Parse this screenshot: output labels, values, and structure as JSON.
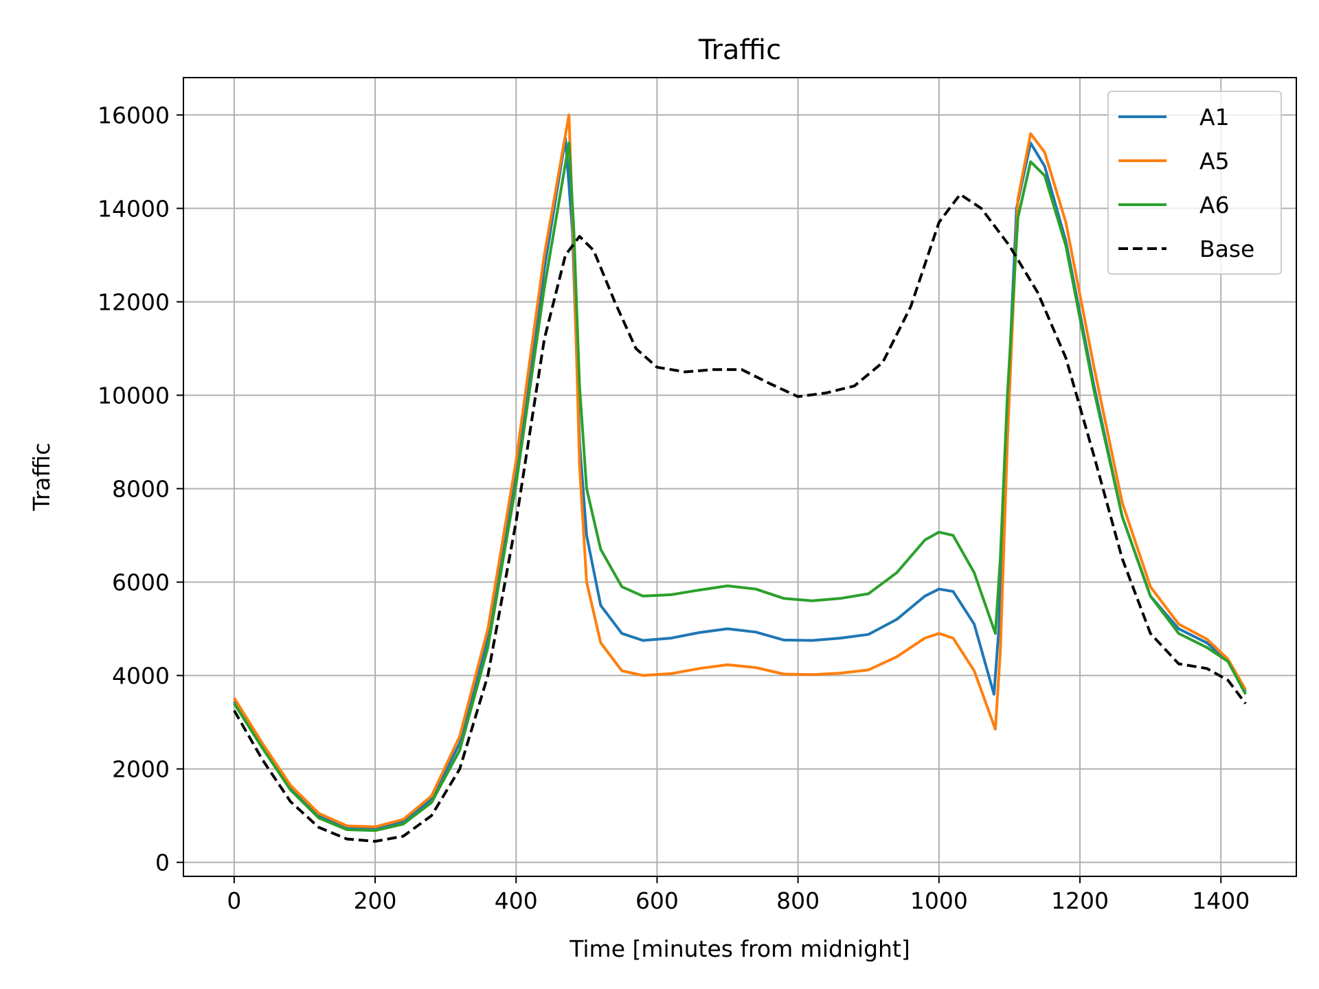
{
  "chart_data": {
    "type": "line",
    "title": "Traffic",
    "xlabel": "Time [minutes from midnight]",
    "ylabel": "Traffic",
    "xlim": [
      -72,
      1507
    ],
    "ylim": [
      -300,
      16800
    ],
    "xticks": [
      0,
      200,
      400,
      600,
      800,
      1000,
      1200,
      1400
    ],
    "yticks": [
      0,
      2000,
      4000,
      6000,
      8000,
      10000,
      12000,
      14000,
      16000
    ],
    "grid": true,
    "legend": "top-right",
    "series": [
      {
        "name": "A1",
        "color": "#1f77b4",
        "dash": "solid",
        "points": [
          [
            0,
            3450
          ],
          [
            40,
            2500
          ],
          [
            80,
            1600
          ],
          [
            120,
            1000
          ],
          [
            160,
            750
          ],
          [
            200,
            720
          ],
          [
            240,
            880
          ],
          [
            280,
            1350
          ],
          [
            320,
            2550
          ],
          [
            360,
            4800
          ],
          [
            400,
            8300
          ],
          [
            440,
            12700
          ],
          [
            470,
            15500
          ],
          [
            480,
            13500
          ],
          [
            490,
            9000
          ],
          [
            500,
            7000
          ],
          [
            520,
            5500
          ],
          [
            550,
            4900
          ],
          [
            580,
            4750
          ],
          [
            620,
            4800
          ],
          [
            660,
            4920
          ],
          [
            700,
            5000
          ],
          [
            740,
            4930
          ],
          [
            780,
            4760
          ],
          [
            820,
            4750
          ],
          [
            860,
            4800
          ],
          [
            900,
            4880
          ],
          [
            940,
            5200
          ],
          [
            980,
            5700
          ],
          [
            1000,
            5850
          ],
          [
            1020,
            5800
          ],
          [
            1050,
            5100
          ],
          [
            1078,
            3600
          ],
          [
            1085,
            5000
          ],
          [
            1095,
            9000
          ],
          [
            1110,
            14000
          ],
          [
            1130,
            15400
          ],
          [
            1150,
            14900
          ],
          [
            1180,
            13300
          ],
          [
            1220,
            10200
          ],
          [
            1260,
            7400
          ],
          [
            1300,
            5700
          ],
          [
            1340,
            5000
          ],
          [
            1380,
            4700
          ],
          [
            1410,
            4300
          ],
          [
            1435,
            3650
          ]
        ]
      },
      {
        "name": "A5",
        "color": "#ff7f0e",
        "dash": "solid",
        "points": [
          [
            0,
            3520
          ],
          [
            40,
            2550
          ],
          [
            80,
            1650
          ],
          [
            120,
            1050
          ],
          [
            160,
            780
          ],
          [
            200,
            760
          ],
          [
            240,
            920
          ],
          [
            280,
            1420
          ],
          [
            320,
            2700
          ],
          [
            360,
            5000
          ],
          [
            400,
            8600
          ],
          [
            440,
            13000
          ],
          [
            475,
            16000
          ],
          [
            482,
            13000
          ],
          [
            490,
            8500
          ],
          [
            500,
            6000
          ],
          [
            520,
            4700
          ],
          [
            550,
            4100
          ],
          [
            580,
            4000
          ],
          [
            620,
            4040
          ],
          [
            660,
            4150
          ],
          [
            700,
            4230
          ],
          [
            740,
            4170
          ],
          [
            780,
            4030
          ],
          [
            820,
            4020
          ],
          [
            860,
            4050
          ],
          [
            900,
            4120
          ],
          [
            940,
            4400
          ],
          [
            980,
            4800
          ],
          [
            1000,
            4900
          ],
          [
            1020,
            4800
          ],
          [
            1050,
            4100
          ],
          [
            1080,
            2850
          ],
          [
            1087,
            4500
          ],
          [
            1097,
            9000
          ],
          [
            1112,
            14200
          ],
          [
            1130,
            15600
          ],
          [
            1150,
            15200
          ],
          [
            1180,
            13700
          ],
          [
            1220,
            10600
          ],
          [
            1260,
            7700
          ],
          [
            1300,
            5900
          ],
          [
            1340,
            5100
          ],
          [
            1380,
            4780
          ],
          [
            1410,
            4350
          ],
          [
            1435,
            3700
          ]
        ]
      },
      {
        "name": "A6",
        "color": "#2ca02c",
        "dash": "solid",
        "points": [
          [
            0,
            3400
          ],
          [
            40,
            2450
          ],
          [
            80,
            1550
          ],
          [
            120,
            950
          ],
          [
            160,
            700
          ],
          [
            200,
            680
          ],
          [
            240,
            820
          ],
          [
            280,
            1280
          ],
          [
            320,
            2400
          ],
          [
            360,
            4600
          ],
          [
            400,
            8100
          ],
          [
            440,
            12300
          ],
          [
            475,
            15400
          ],
          [
            482,
            13500
          ],
          [
            490,
            10200
          ],
          [
            500,
            8000
          ],
          [
            520,
            6700
          ],
          [
            550,
            5900
          ],
          [
            580,
            5700
          ],
          [
            620,
            5730
          ],
          [
            660,
            5830
          ],
          [
            700,
            5920
          ],
          [
            740,
            5850
          ],
          [
            780,
            5650
          ],
          [
            820,
            5600
          ],
          [
            860,
            5650
          ],
          [
            900,
            5750
          ],
          [
            940,
            6200
          ],
          [
            980,
            6900
          ],
          [
            1000,
            7070
          ],
          [
            1020,
            7000
          ],
          [
            1050,
            6200
          ],
          [
            1080,
            4900
          ],
          [
            1087,
            6500
          ],
          [
            1097,
            10000
          ],
          [
            1112,
            13800
          ],
          [
            1130,
            15000
          ],
          [
            1150,
            14700
          ],
          [
            1180,
            13200
          ],
          [
            1220,
            10100
          ],
          [
            1260,
            7400
          ],
          [
            1300,
            5700
          ],
          [
            1340,
            4900
          ],
          [
            1380,
            4600
          ],
          [
            1410,
            4300
          ],
          [
            1435,
            3600
          ]
        ]
      },
      {
        "name": "Base",
        "color": "#000000",
        "dash": "dashed",
        "points": [
          [
            0,
            3250
          ],
          [
            40,
            2200
          ],
          [
            80,
            1300
          ],
          [
            120,
            750
          ],
          [
            160,
            500
          ],
          [
            200,
            450
          ],
          [
            240,
            560
          ],
          [
            280,
            1000
          ],
          [
            320,
            2000
          ],
          [
            360,
            4000
          ],
          [
            400,
            7300
          ],
          [
            440,
            11200
          ],
          [
            470,
            13000
          ],
          [
            490,
            13400
          ],
          [
            510,
            13100
          ],
          [
            540,
            12000
          ],
          [
            570,
            11000
          ],
          [
            600,
            10600
          ],
          [
            640,
            10500
          ],
          [
            680,
            10550
          ],
          [
            720,
            10550
          ],
          [
            760,
            10250
          ],
          [
            800,
            9970
          ],
          [
            840,
            10050
          ],
          [
            880,
            10200
          ],
          [
            920,
            10700
          ],
          [
            960,
            11900
          ],
          [
            1000,
            13700
          ],
          [
            1030,
            14300
          ],
          [
            1060,
            14000
          ],
          [
            1100,
            13200
          ],
          [
            1140,
            12200
          ],
          [
            1180,
            10800
          ],
          [
            1220,
            8700
          ],
          [
            1260,
            6500
          ],
          [
            1300,
            4900
          ],
          [
            1340,
            4250
          ],
          [
            1380,
            4150
          ],
          [
            1410,
            3900
          ],
          [
            1435,
            3400
          ]
        ]
      }
    ]
  }
}
